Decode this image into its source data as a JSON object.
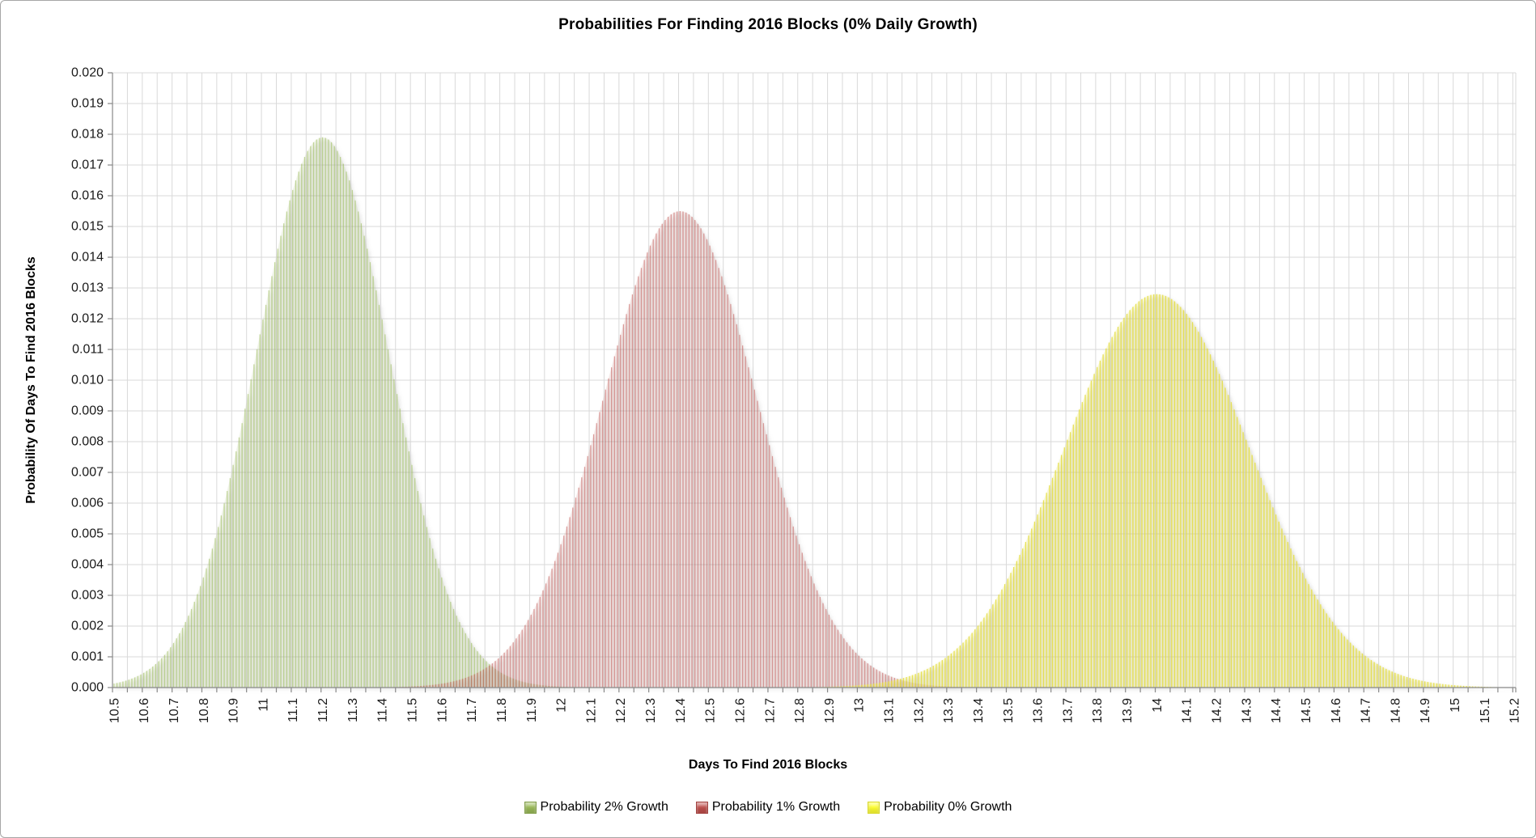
{
  "chart_data": {
    "type": "bar",
    "title": "Probabilities For Finding 2016 Blocks (0% Daily Growth)",
    "xlabel": "Days To Find 2016 Blocks",
    "ylabel": "Probability Of Days To Find 2016 Blocks",
    "x_range": [
      10.5,
      15.2
    ],
    "x_step": 0.01,
    "x_label_step": 0.1,
    "x_minor_gridline_step": 0.05,
    "ylim": [
      0,
      0.02
    ],
    "y_tick_step": 0.001,
    "grid": true,
    "legend_position": "bottom",
    "x_tick_labels": [
      "10.5",
      "10.6",
      "10.7",
      "10.8",
      "10.9",
      "11",
      "11.1",
      "11.2",
      "11.3",
      "11.4",
      "11.5",
      "11.6",
      "11.7",
      "11.8",
      "11.9",
      "12",
      "12.1",
      "12.2",
      "12.3",
      "12.4",
      "12.5",
      "12.6",
      "12.7",
      "12.8",
      "12.9",
      "13",
      "13.1",
      "13.2",
      "13.3",
      "13.4",
      "13.5",
      "13.6",
      "13.7",
      "13.8",
      "13.9",
      "14",
      "14.1",
      "14.2",
      "14.3",
      "14.4",
      "14.5",
      "14.6",
      "14.7",
      "14.8",
      "14.9",
      "15",
      "15.1",
      "15.2"
    ],
    "y_tick_labels": [
      "0.000",
      "0.001",
      "0.002",
      "0.003",
      "0.004",
      "0.005",
      "0.006",
      "0.007",
      "0.008",
      "0.009",
      "0.010",
      "0.011",
      "0.012",
      "0.013",
      "0.014",
      "0.015",
      "0.016",
      "0.017",
      "0.018",
      "0.019",
      "0.020"
    ],
    "series": [
      {
        "name": "Probability 2% Growth",
        "distribution": "normal",
        "mean": 11.2,
        "sigma": 0.223,
        "peak_x": 11.2,
        "peak_probability": 0.0179,
        "legend_color": "#9BBB59",
        "bar_color": "#9BBB59",
        "bar_opacity": 0.55,
        "fill_color": "#9BBB59",
        "fill_opacity": 0.14
      },
      {
        "name": "Probability 1% Growth",
        "distribution": "normal",
        "mean": 12.4,
        "sigma": 0.258,
        "peak_x": 12.4,
        "peak_probability": 0.0155,
        "legend_color": "#C0504D",
        "bar_color": "#C0504D",
        "bar_opacity": 0.5,
        "fill_color": "#C0504D",
        "fill_opacity": 0.12
      },
      {
        "name": "Probability 0% Growth",
        "distribution": "normal",
        "mean": 14.0,
        "sigma": 0.312,
        "peak_x": 14.0,
        "peak_probability": 0.0128,
        "legend_color": "#FFFF33",
        "bar_color": "#E4DC38",
        "bar_opacity": 0.8,
        "fill_color": "#EFE94F",
        "fill_opacity": 0.22
      }
    ],
    "colors": {
      "gridline": "#D9D9D9",
      "axis": "#898989",
      "text": "#1a1a1a"
    }
  }
}
